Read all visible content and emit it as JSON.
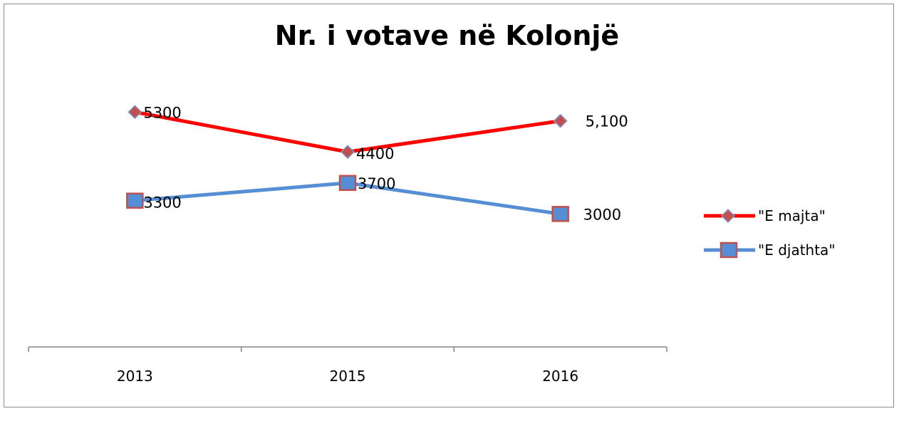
{
  "chart_data": {
    "type": "line",
    "title": "Nr. i votave në Kolonjë",
    "categories": [
      "2013",
      "2015",
      "2016"
    ],
    "xlabel": "",
    "ylabel": "",
    "ylim": [
      0,
      6000
    ],
    "grid": false,
    "legend_position": "right",
    "series": [
      {
        "name": "\"E majta\"",
        "values": [
          5300,
          4400,
          5100
        ],
        "labels": [
          "5300",
          "4400",
          "5,100"
        ],
        "color": "#ff0000",
        "marker": "diamond",
        "marker_color": "#c0504d"
      },
      {
        "name": "\"E djathta\"",
        "values": [
          3300,
          3700,
          3000
        ],
        "labels": [
          "3300",
          "3700",
          "3000"
        ],
        "color": "#558ed5",
        "marker": "square",
        "marker_color": "#558ed5",
        "marker_border": "#c0504d"
      }
    ]
  }
}
